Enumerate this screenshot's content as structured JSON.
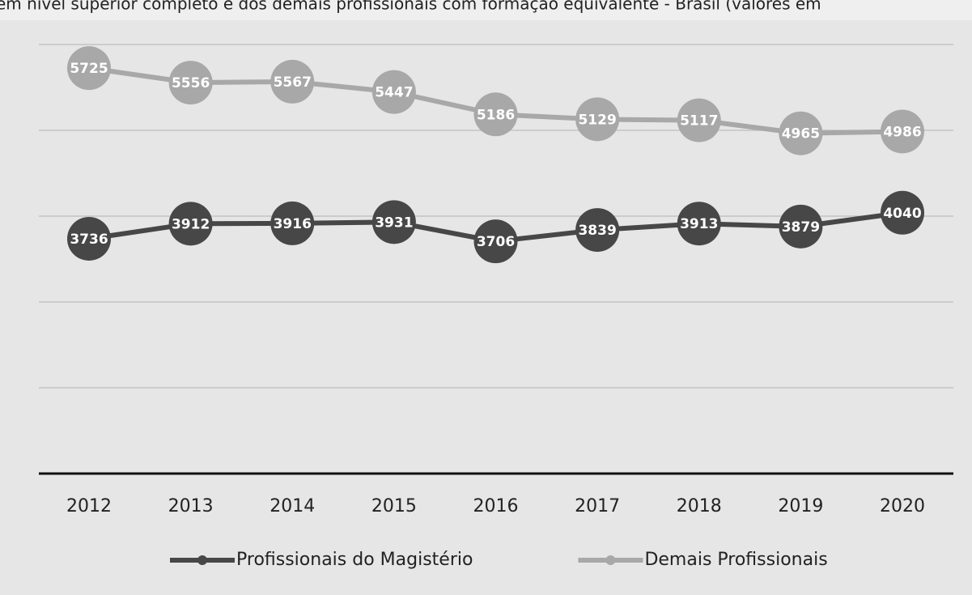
{
  "chart_data": {
    "type": "line",
    "title": "em nível superior completo e dos demais profissionais com formação equivalente - Brasil (valores em",
    "categories": [
      "2012",
      "2013",
      "2014",
      "2015",
      "2016",
      "2017",
      "2018",
      "2019",
      "2020"
    ],
    "series": [
      {
        "name": "Profissionais do Magistério",
        "color": "#474747",
        "values": [
          3736,
          3912,
          3916,
          3931,
          3706,
          3839,
          3913,
          3879,
          4040
        ]
      },
      {
        "name": "Demais Profissionais",
        "color": "#a8a8a8",
        "values": [
          5725,
          5556,
          5567,
          5447,
          5186,
          5129,
          5117,
          4965,
          4986
        ]
      }
    ],
    "ylim": [
      1000,
      6000
    ],
    "yticks": [
      1000,
      2000,
      3000,
      4000,
      5000,
      6000
    ],
    "grid": true
  }
}
